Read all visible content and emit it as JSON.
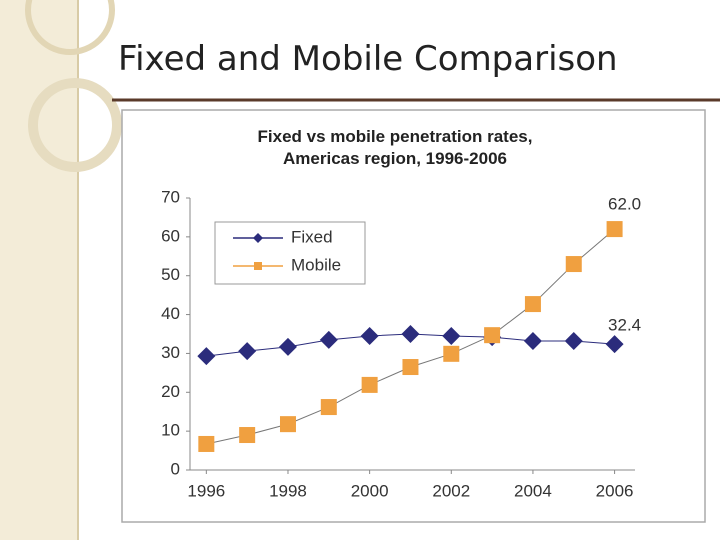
{
  "slide_title": "Fixed and Mobile Comparison",
  "chart_data": {
    "type": "line",
    "title": [
      "Fixed vs mobile penetration rates,",
      "Americas region, 1996-2006"
    ],
    "x": [
      1996,
      1997,
      1998,
      1999,
      2000,
      2001,
      2002,
      2003,
      2004,
      2005,
      2006
    ],
    "series": [
      {
        "name": "Fixed",
        "color": "#2b2c7c",
        "marker": "diamond",
        "values": [
          29.3,
          30.6,
          31.7,
          33.5,
          34.5,
          35.0,
          34.5,
          34.2,
          33.2,
          33.2,
          32.4
        ],
        "value_labels": [
          null,
          null,
          null,
          null,
          null,
          null,
          null,
          null,
          null,
          null,
          "32.4"
        ]
      },
      {
        "name": "Mobile",
        "color": "#f0a040",
        "marker": "square",
        "values": [
          6.7,
          9.0,
          11.8,
          16.2,
          21.9,
          26.5,
          29.9,
          34.7,
          42.7,
          53.0,
          62.0
        ],
        "value_labels": [
          null,
          null,
          null,
          null,
          null,
          null,
          null,
          null,
          null,
          null,
          "62.0"
        ]
      }
    ],
    "xlim": [
      1995.6,
      2006.5
    ],
    "xticks": [
      1996,
      1998,
      2000,
      2002,
      2004,
      2006
    ],
    "ylim": [
      0,
      70
    ],
    "yticks": [
      0,
      10,
      20,
      30,
      40,
      50,
      60,
      70
    ],
    "legend": "upper left",
    "grid": false
  }
}
